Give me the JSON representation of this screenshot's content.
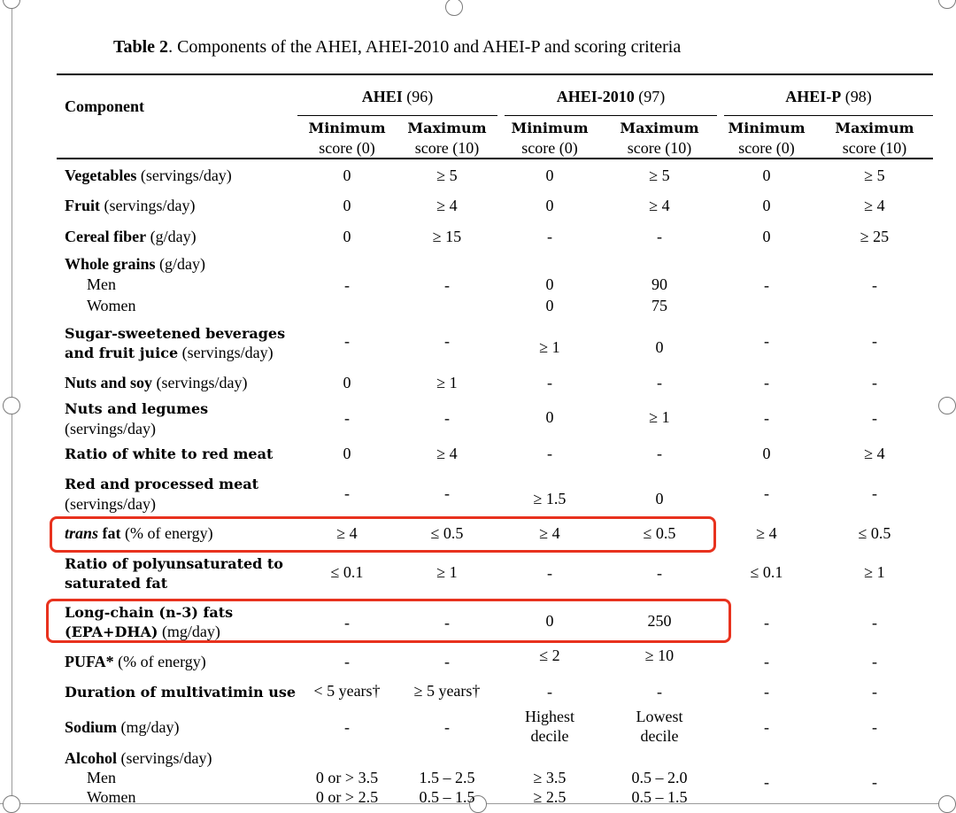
{
  "table": {
    "title_prefix": "Table 2",
    "title_rest": ". Components of the AHEI, AHEI-2010 and AHEI-P and scoring criteria",
    "component_header": "Component",
    "groups": [
      {
        "name": "AHEI",
        "ref": " (96)"
      },
      {
        "name": "AHEI-2010",
        "ref": " (97)"
      },
      {
        "name": "AHEI-P",
        "ref": " (98)"
      }
    ],
    "subheaders": {
      "min_line1": "Minimum",
      "min_line2": "score (0)",
      "max_line1": "Maximum",
      "max_line2": "score (10)"
    },
    "rows": {
      "vegetables": {
        "bold": "Vegetables",
        "unit": " (servings/day)",
        "v": [
          "0",
          "≥ 5",
          "0",
          "≥ 5",
          "0",
          "≥ 5"
        ]
      },
      "fruit": {
        "bold": "Fruit",
        "unit": " (servings/day)",
        "v": [
          "0",
          "≥ 4",
          "0",
          "≥ 4",
          "0",
          "≥ 4"
        ]
      },
      "cereal": {
        "bold": "Cereal fiber",
        "unit": " (g/day)",
        "v": [
          "0",
          "≥ 15",
          "-",
          "-",
          "0",
          "≥ 25"
        ]
      },
      "grains": {
        "bold": "Whole grains",
        "unit": " (g/day)",
        "men": "Men",
        "women": "Women",
        "v": [
          "-",
          "-",
          "0",
          "90",
          "-",
          "-"
        ],
        "v2": [
          "0",
          "75"
        ]
      },
      "ssb": {
        "line1": "Sugar-sweetened beverages",
        "line2_bold": "and fruit juice",
        "line2_unit": " (servings/day)",
        "v": [
          "-",
          "-",
          "≥ 1",
          "0",
          "-",
          "-"
        ]
      },
      "nutsoy": {
        "bold": "Nuts and soy",
        "unit": " (servings/day)",
        "v": [
          "0",
          "≥ 1",
          "-",
          "-",
          "-",
          "-"
        ]
      },
      "legumes": {
        "line1": "Nuts and legumes",
        "line2": "(servings/day)",
        "v": [
          "-",
          "-",
          "0",
          "≥ 1",
          "-",
          "-"
        ]
      },
      "whitered": {
        "bold": "Ratio of white to red meat",
        "v": [
          "0",
          "≥ 4",
          "-",
          "-",
          "0",
          "≥ 4"
        ]
      },
      "redmeat": {
        "line1": "Red and processed meat",
        "line2": "(servings/day)",
        "v": [
          "-",
          "-",
          "≥ 1.5",
          "0",
          "-",
          "-"
        ]
      },
      "trans": {
        "italic": "trans",
        "bold": " fat",
        "unit": " (% of energy)",
        "v": [
          "≥ 4",
          "≤ 0.5",
          "≥ 4",
          "≤ 0.5",
          "≥ 4",
          "≤ 0.5"
        ]
      },
      "pufasat": {
        "line1": "Ratio of polyunsaturated to",
        "line2": "saturated fat",
        "v": [
          "≤ 0.1",
          "≥ 1",
          "-",
          "-",
          "≤ 0.1",
          "≥ 1"
        ]
      },
      "omega3": {
        "line1": "Long-chain (n-3) fats",
        "line2_bold": "(EPA+DHA)",
        "line2_unit": " (mg/day)",
        "v": [
          "-",
          "-",
          "0",
          "250",
          "-",
          "-"
        ]
      },
      "pufa": {
        "bold": "PUFA*",
        "unit": " (% of energy)",
        "v": [
          "-",
          "-",
          "≤ 2",
          "≥ 10",
          "-",
          "-"
        ]
      },
      "multivit": {
        "bold": "Duration of multivatimin use",
        "v": [
          "< 5 years†",
          "≥ 5 years†",
          "-",
          "-",
          "-",
          "-"
        ]
      },
      "sodium": {
        "bold": "Sodium",
        "unit": " (mg/day)",
        "v": [
          "-",
          "-",
          "Highest",
          "Lowest",
          "-",
          "-"
        ],
        "v2": [
          "decile",
          "decile"
        ]
      },
      "alcohol": {
        "bold": "Alcohol",
        "unit": " (servings/day)",
        "men": "Men",
        "women": "Women",
        "men_v": [
          "0 or > 3.5",
          "1.5 – 2.5",
          "≥ 3.5",
          "0.5 – 2.0",
          "-",
          "-"
        ],
        "women_v": [
          "0 or > 2.5",
          "0.5 – 1.5",
          "≥ 2.5",
          "0.5 – 1.5"
        ]
      }
    }
  },
  "colors": {
    "highlight": "#e8321e",
    "rule": "#000000",
    "frame": "#9a9a9a"
  }
}
